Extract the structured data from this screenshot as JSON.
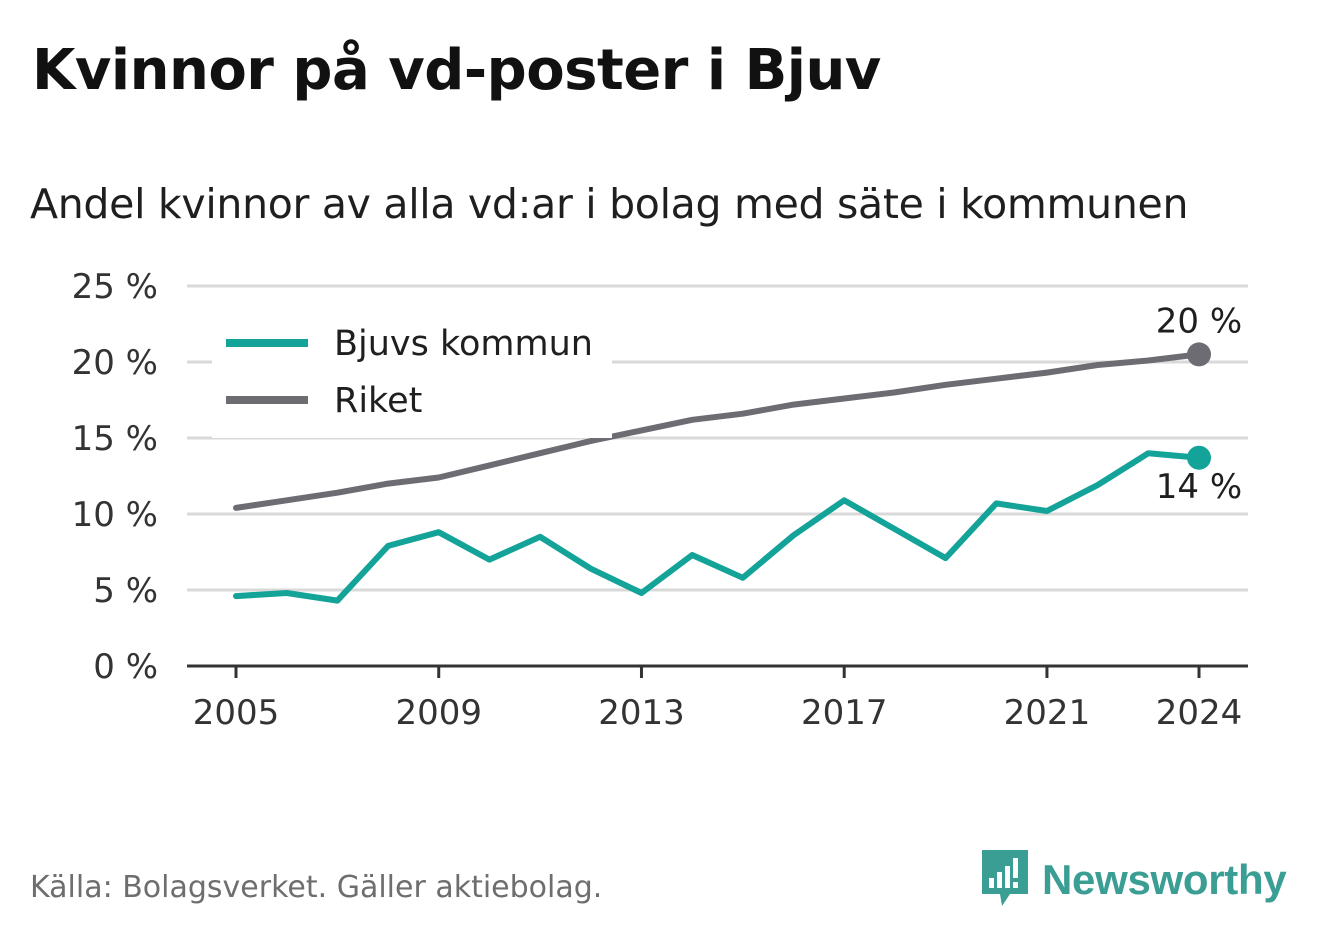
{
  "title": "Kvinnor på vd-poster i Bjuv",
  "subtitle": "Andel kvinnor av alla vd:ar i bolag med säte i kommunen",
  "source": "Källa: Bolagsverket. Gäller aktiebolag.",
  "brand": {
    "name": "Newsworthy",
    "logo_icon": "newsworthy-chart-logo-icon"
  },
  "colors": {
    "bjuv": "#14a398",
    "riket": "#6d6c73",
    "grid": "#d9d9d9",
    "axis": "#333333"
  },
  "chart_data": {
    "type": "line",
    "x": [
      2005,
      2006,
      2007,
      2008,
      2009,
      2010,
      2011,
      2012,
      2013,
      2014,
      2015,
      2016,
      2017,
      2018,
      2019,
      2020,
      2021,
      2022,
      2023,
      2024
    ],
    "series": [
      {
        "name": "Bjuvs kommun",
        "values": [
          4.6,
          4.8,
          4.3,
          7.9,
          8.8,
          7.0,
          8.5,
          6.4,
          4.8,
          7.3,
          5.8,
          8.6,
          10.9,
          9.0,
          7.1,
          10.7,
          10.2,
          11.9,
          14.0,
          13.7
        ],
        "end_label": "14 %"
      },
      {
        "name": "Riket",
        "values": [
          10.4,
          10.9,
          11.4,
          12.0,
          12.4,
          13.2,
          14.0,
          14.8,
          15.5,
          16.2,
          16.6,
          17.2,
          17.6,
          18.0,
          18.5,
          18.9,
          19.3,
          19.8,
          20.1,
          20.5
        ],
        "end_label": "20 %"
      }
    ],
    "yticks": [
      "0 %",
      "5 %",
      "10 %",
      "15 %",
      "20 %",
      "25 %"
    ],
    "xticks": [
      "2005",
      "2009",
      "2013",
      "2017",
      "2021",
      "2024"
    ],
    "ylim": [
      0,
      25
    ],
    "grid": true,
    "legend": "top-left"
  }
}
